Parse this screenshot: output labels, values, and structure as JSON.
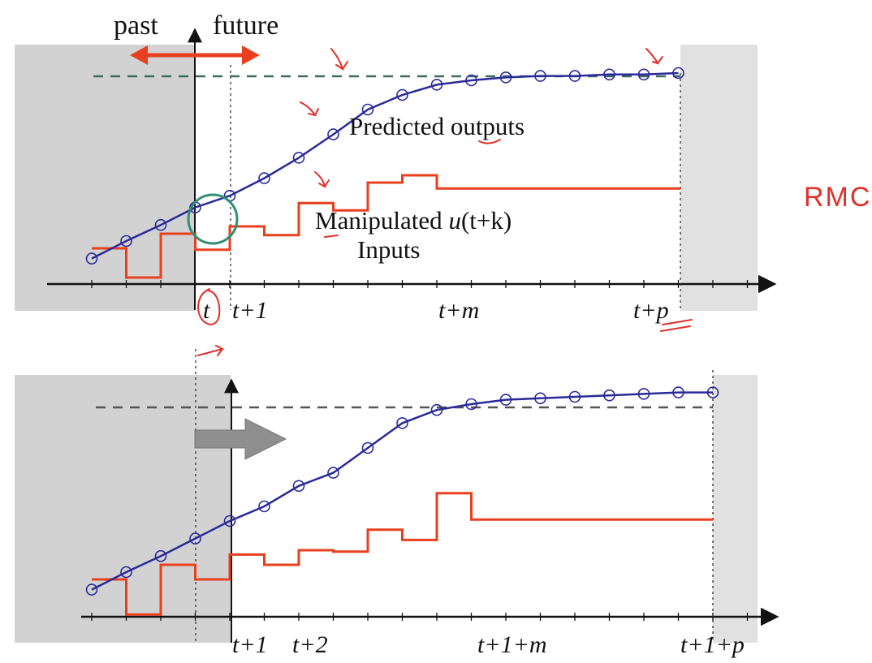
{
  "top_panel": {
    "past_label": "past",
    "future_label": "future",
    "predicted_label": "Predicted outputs",
    "manipulated_label": "Manipulated ",
    "u_symbol": "u",
    "u_arg": "(t+k)",
    "inputs_label": "Inputs",
    "ticks": {
      "t": "t",
      "t1": "t+1",
      "tm": "t+m",
      "tp": "t+p"
    },
    "output_y": [
      0.23,
      0.35,
      0.46,
      0.58,
      0.66,
      0.78,
      0.92,
      1.08,
      1.25,
      1.35,
      1.42,
      1.45,
      1.47,
      1.48,
      1.48,
      1.49,
      1.49,
      1.5
    ],
    "input_levels": [
      0.3,
      0.1,
      0.4,
      0.29,
      0.45,
      0.39,
      0.61,
      0.56,
      0.75,
      0.8,
      0.71,
      0.71,
      0.71,
      0.71,
      0.71,
      0.71,
      0.71,
      0.71
    ],
    "colors": {
      "output": "#2a2a9a",
      "input": "#e8401f",
      "shade": "#d0d0d0",
      "circle": "#2f8f76",
      "arrow": "#e8401f"
    }
  },
  "bottom_panel": {
    "ticks": {
      "t1": "t+1",
      "t2": "t+2",
      "t1m": "t+1+m",
      "t1p": "t+1+p"
    },
    "output_y": [
      0.23,
      0.35,
      0.46,
      0.58,
      0.7,
      0.8,
      0.94,
      1.03,
      1.2,
      1.37,
      1.46,
      1.5,
      1.53,
      1.54,
      1.55,
      1.56,
      1.57,
      1.58,
      1.58
    ],
    "input_levels": [
      0.3,
      0.06,
      0.4,
      0.3,
      0.47,
      0.4,
      0.5,
      0.49,
      0.64,
      0.57,
      0.89,
      0.71,
      0.71,
      0.71,
      0.71,
      0.71,
      0.71,
      0.71,
      0.71
    ],
    "colors": {
      "arrow": "#8f8f8f"
    }
  },
  "annotation": {
    "text": "RMC"
  }
}
